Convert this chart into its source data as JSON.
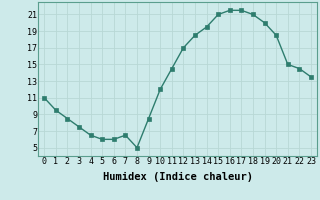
{
  "x": [
    0,
    1,
    2,
    3,
    4,
    5,
    6,
    7,
    8,
    9,
    10,
    11,
    12,
    13,
    14,
    15,
    16,
    17,
    18,
    19,
    20,
    21,
    22,
    23
  ],
  "y": [
    11,
    9.5,
    8.5,
    7.5,
    6.5,
    6.0,
    6.0,
    6.5,
    5.0,
    8.5,
    12.0,
    14.5,
    17.0,
    18.5,
    19.5,
    21.0,
    21.5,
    21.5,
    21.0,
    20.0,
    18.5,
    15.0,
    14.5,
    13.5
  ],
  "line_color": "#2e7d6e",
  "marker": "s",
  "markersize": 2.5,
  "linewidth": 1.0,
  "bg_color": "#cdeaea",
  "grid_color": "#b8d8d5",
  "xlabel": "Humidex (Indice chaleur)",
  "xlabel_fontsize": 7.5,
  "yticks": [
    5,
    7,
    9,
    11,
    13,
    15,
    17,
    19,
    21
  ],
  "xtick_labels": [
    "0",
    "1",
    "2",
    "3",
    "4",
    "5",
    "6",
    "7",
    "8",
    "9",
    "10",
    "11",
    "12",
    "13",
    "14",
    "15",
    "16",
    "17",
    "18",
    "19",
    "20",
    "21",
    "22",
    "23"
  ],
  "ylim": [
    4.0,
    22.5
  ],
  "xlim": [
    -0.5,
    23.5
  ],
  "tick_fontsize": 6.0,
  "title": ""
}
